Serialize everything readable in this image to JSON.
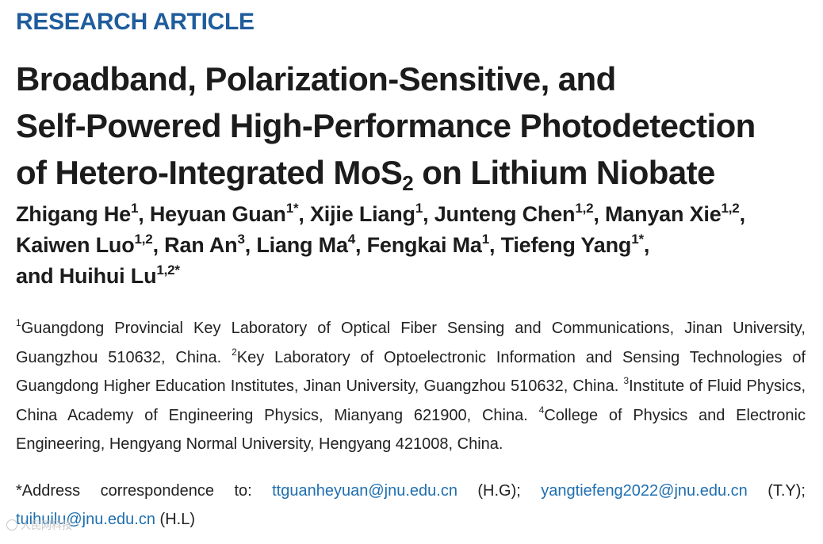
{
  "header": {
    "article_type": "RESEARCH ARTICLE"
  },
  "title": {
    "line1": "Broadband, Polarization-Sensitive, and",
    "line2": "Self-Powered High-Performance Photodetection",
    "line3_pre": "of Hetero-Integrated MoS",
    "line3_sub": "2",
    "line3_post": " on Lithium Niobate"
  },
  "authors": [
    {
      "name": "Zhigang He",
      "aff": "1"
    },
    {
      "name": "Heyuan Guan",
      "aff": "1*"
    },
    {
      "name": "Xijie Liang",
      "aff": "1"
    },
    {
      "name": "Junteng Chen",
      "aff": "1,2"
    },
    {
      "name": "Manyan Xie",
      "aff": "1,2"
    },
    {
      "name": "Kaiwen Luo",
      "aff": "1,2"
    },
    {
      "name": "Ran An",
      "aff": "3"
    },
    {
      "name": "Liang Ma",
      "aff": "4"
    },
    {
      "name": "Fengkai Ma",
      "aff": "1"
    },
    {
      "name": "Tiefeng Yang",
      "aff": "1*"
    },
    {
      "name": "Huihui Lu",
      "aff": "1,2*"
    }
  ],
  "authors_and": "and ",
  "affiliations": [
    {
      "num": "1",
      "text": "Guangdong Provincial Key Laboratory of Optical Fiber Sensing and Communications, Jinan University, Guangzhou 510632, China."
    },
    {
      "num": "2",
      "text": "Key Laboratory of Optoelectronic Information and Sensing Technologies of Guangdong Higher Education Institutes, Jinan University, Guangzhou 510632, China."
    },
    {
      "num": "3",
      "text": "Institute of Fluid Physics, China Academy of Engineering Physics, Mianyang 621900, China."
    },
    {
      "num": "4",
      "text": "College of Physics and Electronic Engineering, Hengyang Normal University, Hengyang 421008, China."
    }
  ],
  "correspondence": {
    "prefix": "*Address correspondence to: ",
    "contacts": [
      {
        "email": "ttguanheyuan@jnu.edu.cn",
        "who": " (H.G); "
      },
      {
        "email": "yangtiefeng2022@jnu.edu.cn",
        "who": " (T.Y); "
      },
      {
        "email": "tuihuilu@jnu.edu.cn",
        "who": " (H.L)"
      }
    ]
  },
  "watermark": {
    "text": "人民网科技",
    "icon": "circle-logo-icon"
  },
  "colors": {
    "accent": "#1f5d9c",
    "link": "#1f6fb0",
    "text": "#1c1c1c"
  }
}
